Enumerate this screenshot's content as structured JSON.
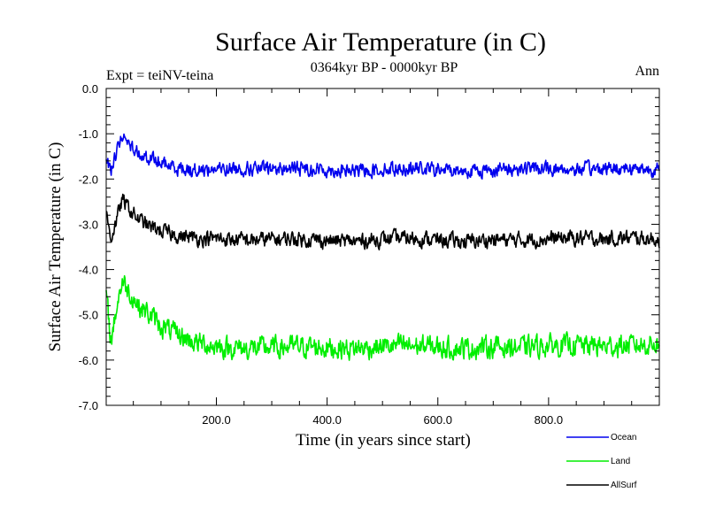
{
  "chart_data": {
    "type": "line",
    "title": "Surface Air Temperature (in C)",
    "subtitle": "0364kyr BP - 0000kyr BP",
    "experiment_label": "Expt = teiNV-teina",
    "season_label": "Ann",
    "xlabel": "Time (in years since start)",
    "ylabel": "Surface Air Temperature (in C)",
    "xlim": [
      1,
      1000
    ],
    "ylim": [
      -7.0,
      0.0
    ],
    "x_ticks": [
      200,
      400,
      600,
      800
    ],
    "x_tick_labels": [
      "200.0",
      "400.0",
      "600.0",
      "800.0"
    ],
    "y_ticks": [
      0,
      -1,
      -2,
      -3,
      -4,
      -5,
      -6,
      -7
    ],
    "y_tick_labels": [
      "0.0",
      "-1.0",
      "-2.0",
      "-3.0",
      "-4.0",
      "-5.0",
      "-6.0",
      "-7.0"
    ],
    "legend_position": "bottom-right",
    "series": [
      {
        "name": "Ocean",
        "color": "#0000ee",
        "x": [
          1,
          10,
          20,
          30,
          45,
          60,
          80,
          100,
          130,
          160,
          200,
          250,
          300,
          350,
          400,
          450,
          500,
          550,
          600,
          650,
          700,
          750,
          800,
          850,
          900,
          950,
          1000
        ],
        "values": [
          -1.6,
          -1.8,
          -1.35,
          -1.05,
          -1.25,
          -1.4,
          -1.55,
          -1.65,
          -1.75,
          -1.8,
          -1.78,
          -1.77,
          -1.78,
          -1.76,
          -1.8,
          -1.82,
          -1.78,
          -1.75,
          -1.8,
          -1.82,
          -1.8,
          -1.76,
          -1.78,
          -1.79,
          -1.77,
          -1.75,
          -1.8
        ],
        "noise_amplitude": 0.13
      },
      {
        "name": "Land",
        "color": "#00ee00",
        "x": [
          1,
          10,
          20,
          30,
          45,
          60,
          80,
          100,
          130,
          160,
          200,
          250,
          300,
          350,
          400,
          450,
          500,
          550,
          600,
          650,
          700,
          750,
          800,
          850,
          900,
          950,
          1000
        ],
        "values": [
          -4.6,
          -5.6,
          -4.8,
          -4.25,
          -4.55,
          -4.8,
          -5.0,
          -5.25,
          -5.45,
          -5.6,
          -5.7,
          -5.75,
          -5.72,
          -5.7,
          -5.72,
          -5.75,
          -5.7,
          -5.68,
          -5.72,
          -5.74,
          -5.7,
          -5.72,
          -5.68,
          -5.66,
          -5.7,
          -5.68,
          -5.62
        ],
        "noise_amplitude": 0.2
      },
      {
        "name": "AllSurf",
        "color": "#000000",
        "x": [
          1,
          10,
          20,
          30,
          45,
          60,
          80,
          100,
          130,
          160,
          200,
          250,
          300,
          350,
          400,
          450,
          500,
          550,
          600,
          650,
          700,
          750,
          800,
          850,
          900,
          950,
          1000
        ],
        "values": [
          -2.8,
          -3.3,
          -2.9,
          -2.45,
          -2.7,
          -2.9,
          -3.05,
          -3.15,
          -3.25,
          -3.3,
          -3.32,
          -3.35,
          -3.33,
          -3.32,
          -3.36,
          -3.38,
          -3.33,
          -3.3,
          -3.35,
          -3.38,
          -3.34,
          -3.35,
          -3.32,
          -3.3,
          -3.33,
          -3.3,
          -3.33
        ],
        "noise_amplitude": 0.14
      }
    ]
  }
}
